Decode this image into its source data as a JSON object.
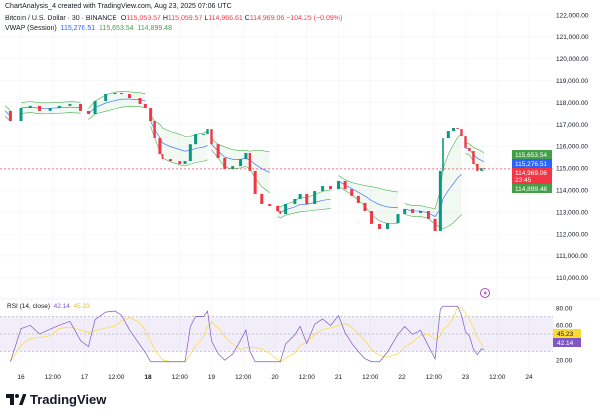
{
  "header": {
    "caption": "ChartAnalysis_4 created with TradingView.com, Aug 23, 2025 07:06 UTC",
    "symbol": "Bitcoin / U.S. Dollar · 30 · BINANCE",
    "o_label": "O",
    "o": "115,059.57",
    "h_label": "H",
    "h": "115,059.57",
    "l_label": "L",
    "l": "114,966.61",
    "c_label": "C",
    "c": "114,969.06",
    "change": "−104.25 (−0.09%)",
    "vwap_label": "VWAP (Session)",
    "vwap": "115,276.51",
    "vwap_upper": "115,653.54",
    "vwap_lower": "114,899.48"
  },
  "rsi": {
    "label": "RSI (14, close)",
    "value": "42.14",
    "ma": "45.23"
  },
  "price_tags": {
    "upper": "115,653.54",
    "vwap": "115,276.51",
    "last": "114,969.06",
    "countdown": "23:45",
    "lower": "114,899.48"
  },
  "colors": {
    "up": "#089981",
    "down": "#f23645",
    "vwap": "#2962ff",
    "band": "#4caf50",
    "rsi": "#7e57c2",
    "rsi_ma": "#fdd835"
  },
  "logo": "TradingView",
  "chart_data": [
    {
      "type": "candlestick",
      "title": "Bitcoin / U.S. Dollar · 30 · BINANCE",
      "ylim": [
        109500,
        122300
      ],
      "y_ticks": [
        "122,000.00",
        "121,000.00",
        "120,000.00",
        "119,000.00",
        "118,000.00",
        "117,000.00",
        "116,000.00",
        "115,000.00",
        "114,000.00",
        "113,000.00",
        "112,000.00",
        "111,000.00",
        "110,000.00"
      ],
      "x_ticks": [
        "16",
        "12:00",
        "17",
        "12:00",
        "18",
        "12:00",
        "19",
        "12:00",
        "20",
        "12:00",
        "21",
        "12:00",
        "22",
        "12:00",
        "23",
        "12:00",
        "24"
      ],
      "grid": true,
      "close_series": [
        [
          "2025-08-15T18:00",
          117620
        ],
        [
          "2025-08-15T20:00",
          117160
        ],
        [
          "2025-08-16T00:00",
          117750
        ],
        [
          "2025-08-16T03:30",
          117850
        ],
        [
          "2025-08-16T07:00",
          117620
        ],
        [
          "2025-08-16T11:00",
          117750
        ],
        [
          "2025-08-16T14:30",
          117850
        ],
        [
          "2025-08-16T18:30",
          117940
        ],
        [
          "2025-08-16T22:30",
          117620
        ],
        [
          "2025-08-17T01:30",
          117480
        ],
        [
          "2025-08-17T04:00",
          118070
        ],
        [
          "2025-08-17T08:00",
          118390
        ],
        [
          "2025-08-17T11:30",
          118440
        ],
        [
          "2025-08-17T14:00",
          118390
        ],
        [
          "2025-08-17T17:00",
          118210
        ],
        [
          "2025-08-17T21:00",
          117940
        ],
        [
          "2025-08-17T23:00",
          117750
        ],
        [
          "2025-08-18T01:00",
          117160
        ],
        [
          "2025-08-18T02:30",
          116380
        ],
        [
          "2025-08-18T04:30",
          115650
        ],
        [
          "2025-08-18T05:30",
          115420
        ],
        [
          "2025-08-18T08:30",
          115330
        ],
        [
          "2025-08-18T12:00",
          115200
        ],
        [
          "2025-08-18T14:00",
          115330
        ],
        [
          "2025-08-18T16:00",
          116100
        ],
        [
          "2025-08-18T18:00",
          116560
        ],
        [
          "2025-08-18T21:00",
          116560
        ],
        [
          "2025-08-18T22:30",
          116790
        ],
        [
          "2025-08-19T00:00",
          116100
        ],
        [
          "2025-08-19T02:30",
          115470
        ],
        [
          "2025-08-19T05:00",
          114970
        ],
        [
          "2025-08-19T08:00",
          115100
        ],
        [
          "2025-08-19T11:00",
          115420
        ],
        [
          "2025-08-19T13:00",
          115700
        ],
        [
          "2025-08-19T14:30",
          114880
        ],
        [
          "2025-08-19T16:30",
          113830
        ],
        [
          "2025-08-19T19:00",
          113370
        ],
        [
          "2025-08-19T22:00",
          113280
        ],
        [
          "2025-08-20T01:00",
          113050
        ],
        [
          "2025-08-20T02:00",
          112910
        ],
        [
          "2025-08-20T04:00",
          113370
        ],
        [
          "2025-08-20T07:30",
          113600
        ],
        [
          "2025-08-20T09:30",
          113830
        ],
        [
          "2025-08-20T12:00",
          113370
        ],
        [
          "2025-08-20T15:00",
          113960
        ],
        [
          "2025-08-20T18:00",
          114190
        ],
        [
          "2025-08-20T21:00",
          114050
        ],
        [
          "2025-08-21T00:00",
          114420
        ],
        [
          "2025-08-21T02:30",
          114050
        ],
        [
          "2025-08-21T05:00",
          113740
        ],
        [
          "2025-08-21T07:30",
          113420
        ],
        [
          "2025-08-21T10:00",
          113050
        ],
        [
          "2025-08-21T12:30",
          112460
        ],
        [
          "2025-08-21T15:30",
          112230
        ],
        [
          "2025-08-21T18:30",
          112500
        ],
        [
          "2025-08-21T22:30",
          112910
        ],
        [
          "2025-08-22T01:00",
          113140
        ],
        [
          "2025-08-22T04:00",
          112960
        ],
        [
          "2025-08-22T07:00",
          113050
        ],
        [
          "2025-08-22T10:00",
          112690
        ],
        [
          "2025-08-22T12:30",
          112140
        ],
        [
          "2025-08-22T14:30",
          114880
        ],
        [
          "2025-08-22T15:30",
          116380
        ],
        [
          "2025-08-22T17:30",
          116700
        ],
        [
          "2025-08-22T19:30",
          116840
        ],
        [
          "2025-08-22T21:00",
          116790
        ],
        [
          "2025-08-22T22:30",
          116470
        ],
        [
          "2025-08-23T00:00",
          115930
        ],
        [
          "2025-08-23T01:30",
          115790
        ],
        [
          "2025-08-23T03:00",
          115200
        ],
        [
          "2025-08-23T04:30",
          114880
        ],
        [
          "2025-08-23T06:00",
          115010
        ],
        [
          "2025-08-23T07:00",
          114969.06
        ]
      ]
    },
    {
      "type": "line",
      "title": "RSI (14, close)",
      "ylim": [
        15,
        85
      ],
      "y_ticks": [
        "80.00",
        "60.00",
        "20.00"
      ],
      "band": [
        30,
        70
      ],
      "series": [
        {
          "name": "RSI",
          "last": 42.14
        },
        {
          "name": "RSI MA",
          "last": 45.23
        }
      ]
    }
  ]
}
